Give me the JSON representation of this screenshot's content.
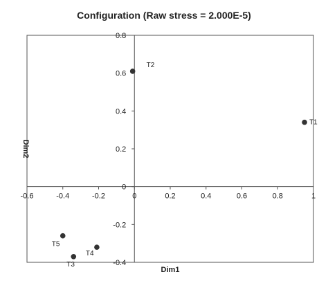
{
  "chart_data": {
    "type": "scatter",
    "title": "Configuration (Raw stress = 2.000E-5)",
    "xlabel": "Dim1",
    "ylabel": "Dim2",
    "xlim": [
      -0.6,
      1.0
    ],
    "ylim": [
      -0.4,
      0.8
    ],
    "x_ticks": [
      "-0.6",
      "-0.4",
      "-0.2",
      "0",
      "0.2",
      "0.4",
      "0.6",
      "0.8",
      "1"
    ],
    "y_ticks": [
      "-0.4",
      "-0.2",
      "0",
      "0.2",
      "0.4",
      "0.6",
      "0.8"
    ],
    "grid": false,
    "legend": "none",
    "points": [
      {
        "label": "T1",
        "x": 0.95,
        "y": 0.34
      },
      {
        "label": "T2",
        "x": -0.01,
        "y": 0.61
      },
      {
        "label": "T3",
        "x": -0.34,
        "y": -0.37
      },
      {
        "label": "T4",
        "x": -0.21,
        "y": -0.32
      },
      {
        "label": "T5",
        "x": -0.4,
        "y": -0.26
      }
    ],
    "marker_color": "#333333"
  }
}
